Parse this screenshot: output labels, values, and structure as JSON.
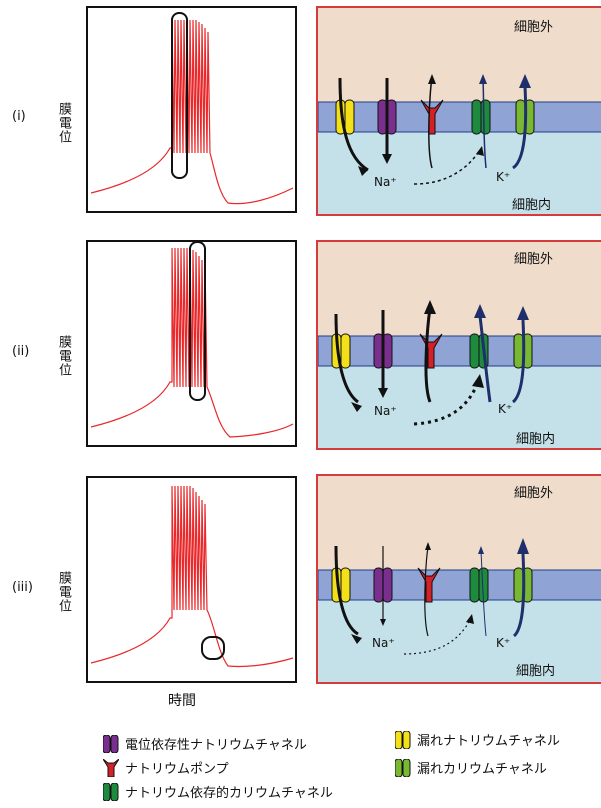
{
  "rows": [
    {
      "label": "(i)",
      "ylabel": "膜電位",
      "outside": "細胞外",
      "inside": "細胞内",
      "na": "Na⁺",
      "k": "K⁺"
    },
    {
      "label": "(ii)",
      "ylabel": "膜電位",
      "outside": "細胞外",
      "inside": "細胞内",
      "na": "Na⁺",
      "k": "K⁺"
    },
    {
      "label": "(iii)",
      "ylabel": "膜電位",
      "outside": "細胞外",
      "inside": "細胞内",
      "na": "Na⁺",
      "k": "K⁺"
    }
  ],
  "xlabel": "時間",
  "legend": {
    "vg_na": "電位依存性ナトリウムチャネル",
    "pump": "ナトリウムポンプ",
    "na_k": "ナトリウム依存的カリウムチャネル",
    "leak_na": "漏れナトリウムチャネル",
    "leak_k": "漏れカリウムチャネル"
  },
  "colors": {
    "trace": "#e8282a",
    "panel_border": "#d63b3b",
    "extracellular": "#efdccb",
    "intracellular": "#c4e1ea",
    "membrane": "#8fa3d4",
    "vg_na": "#7a2f8f",
    "pump": "#d42027",
    "na_k": "#1e8a3e",
    "leak_na": "#f3e01a",
    "leak_k": "#79b833",
    "k_arrow": "#1f2f6b"
  }
}
